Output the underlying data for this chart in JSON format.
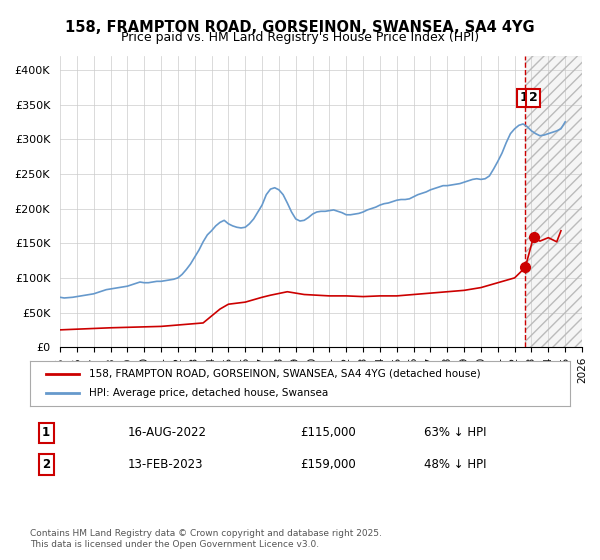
{
  "title": "158, FRAMPTON ROAD, GORSEINON, SWANSEA, SA4 4YG",
  "subtitle": "Price paid vs. HM Land Registry's House Price Index (HPI)",
  "hpi_color": "#6699cc",
  "price_color": "#cc0000",
  "vline_color": "#cc0000",
  "vline_x": 2022.63,
  "background_color": "#ffffff",
  "plot_bg_color": "#ffffff",
  "grid_color": "#cccccc",
  "hatch_color": "#dddddd",
  "xlim": [
    1995,
    2026
  ],
  "ylim": [
    0,
    420000
  ],
  "yticks": [
    0,
    50000,
    100000,
    150000,
    200000,
    250000,
    300000,
    350000,
    400000
  ],
  "ytick_labels": [
    "£0",
    "£50K",
    "£100K",
    "£150K",
    "£200K",
    "£250K",
    "£300K",
    "£350K",
    "£400K"
  ],
  "xticks": [
    1995,
    1996,
    1997,
    1998,
    1999,
    2000,
    2001,
    2002,
    2003,
    2004,
    2005,
    2006,
    2007,
    2008,
    2009,
    2010,
    2011,
    2012,
    2013,
    2014,
    2015,
    2016,
    2017,
    2018,
    2019,
    2020,
    2021,
    2022,
    2023,
    2024,
    2025,
    2026
  ],
  "legend_label_red": "158, FRAMPTON ROAD, GORSEINON, SWANSEA, SA4 4YG (detached house)",
  "legend_label_blue": "HPI: Average price, detached house, Swansea",
  "transaction1_label": "1",
  "transaction1_date": "16-AUG-2022",
  "transaction1_price": "£115,000",
  "transaction1_hpi": "63% ↓ HPI",
  "transaction1_x": 2022.63,
  "transaction1_y": 115000,
  "transaction2_label": "2",
  "transaction2_date": "13-FEB-2023",
  "transaction2_price": "£159,000",
  "transaction2_hpi": "48% ↓ HPI",
  "transaction2_x": 2023.12,
  "transaction2_y": 159000,
  "footer": "Contains HM Land Registry data © Crown copyright and database right 2025.\nThis data is licensed under the Open Government Licence v3.0.",
  "hpi_data": {
    "years": [
      1995.0,
      1995.25,
      1995.5,
      1995.75,
      1996.0,
      1996.25,
      1996.5,
      1996.75,
      1997.0,
      1997.25,
      1997.5,
      1997.75,
      1998.0,
      1998.25,
      1998.5,
      1998.75,
      1999.0,
      1999.25,
      1999.5,
      1999.75,
      2000.0,
      2000.25,
      2000.5,
      2000.75,
      2001.0,
      2001.25,
      2001.5,
      2001.75,
      2002.0,
      2002.25,
      2002.5,
      2002.75,
      2003.0,
      2003.25,
      2003.5,
      2003.75,
      2004.0,
      2004.25,
      2004.5,
      2004.75,
      2005.0,
      2005.25,
      2005.5,
      2005.75,
      2006.0,
      2006.25,
      2006.5,
      2006.75,
      2007.0,
      2007.25,
      2007.5,
      2007.75,
      2008.0,
      2008.25,
      2008.5,
      2008.75,
      2009.0,
      2009.25,
      2009.5,
      2009.75,
      2010.0,
      2010.25,
      2010.5,
      2010.75,
      2011.0,
      2011.25,
      2011.5,
      2011.75,
      2012.0,
      2012.25,
      2012.5,
      2012.75,
      2013.0,
      2013.25,
      2013.5,
      2013.75,
      2014.0,
      2014.25,
      2014.5,
      2014.75,
      2015.0,
      2015.25,
      2015.5,
      2015.75,
      2016.0,
      2016.25,
      2016.5,
      2016.75,
      2017.0,
      2017.25,
      2017.5,
      2017.75,
      2018.0,
      2018.25,
      2018.5,
      2018.75,
      2019.0,
      2019.25,
      2019.5,
      2019.75,
      2020.0,
      2020.25,
      2020.5,
      2020.75,
      2021.0,
      2021.25,
      2021.5,
      2021.75,
      2022.0,
      2022.25,
      2022.5,
      2022.75,
      2023.0,
      2023.25,
      2023.5,
      2023.75,
      2024.0,
      2024.25,
      2024.5,
      2024.75,
      2025.0
    ],
    "values": [
      72000,
      71000,
      71500,
      72000,
      73000,
      74000,
      75000,
      76000,
      77000,
      79000,
      81000,
      83000,
      84000,
      85000,
      86000,
      87000,
      88000,
      90000,
      92000,
      94000,
      93000,
      93000,
      94000,
      95000,
      95000,
      96000,
      97000,
      98000,
      100000,
      105000,
      112000,
      120000,
      130000,
      140000,
      152000,
      162000,
      168000,
      175000,
      180000,
      183000,
      178000,
      175000,
      173000,
      172000,
      173000,
      178000,
      185000,
      195000,
      205000,
      220000,
      228000,
      230000,
      227000,
      220000,
      208000,
      195000,
      185000,
      182000,
      183000,
      187000,
      192000,
      195000,
      196000,
      196000,
      197000,
      198000,
      196000,
      194000,
      191000,
      191000,
      192000,
      193000,
      195000,
      198000,
      200000,
      202000,
      205000,
      207000,
      208000,
      210000,
      212000,
      213000,
      213000,
      214000,
      217000,
      220000,
      222000,
      224000,
      227000,
      229000,
      231000,
      233000,
      233000,
      234000,
      235000,
      236000,
      238000,
      240000,
      242000,
      243000,
      242000,
      243000,
      247000,
      257000,
      268000,
      280000,
      295000,
      308000,
      315000,
      320000,
      322000,
      318000,
      312000,
      308000,
      305000,
      306000,
      308000,
      310000,
      312000,
      315000,
      325000
    ]
  },
  "price_data": {
    "years": [
      1995.0,
      1998.0,
      2001.0,
      2003.5,
      2004.5,
      2005.0,
      2006.0,
      2007.0,
      2007.5,
      2008.5,
      2009.5,
      2011.0,
      2012.0,
      2013.0,
      2014.0,
      2015.0,
      2016.0,
      2017.0,
      2018.0,
      2019.0,
      2020.0,
      2021.0,
      2022.0,
      2022.63,
      2023.12,
      2023.5,
      2024.0,
      2024.5,
      2024.75
    ],
    "values": [
      25000,
      28000,
      30000,
      35000,
      55000,
      62000,
      65000,
      72000,
      75000,
      80000,
      76000,
      74000,
      74000,
      73000,
      74000,
      74000,
      76000,
      78000,
      80000,
      82000,
      86000,
      93000,
      100000,
      115000,
      159000,
      153000,
      158000,
      152000,
      168000
    ]
  }
}
